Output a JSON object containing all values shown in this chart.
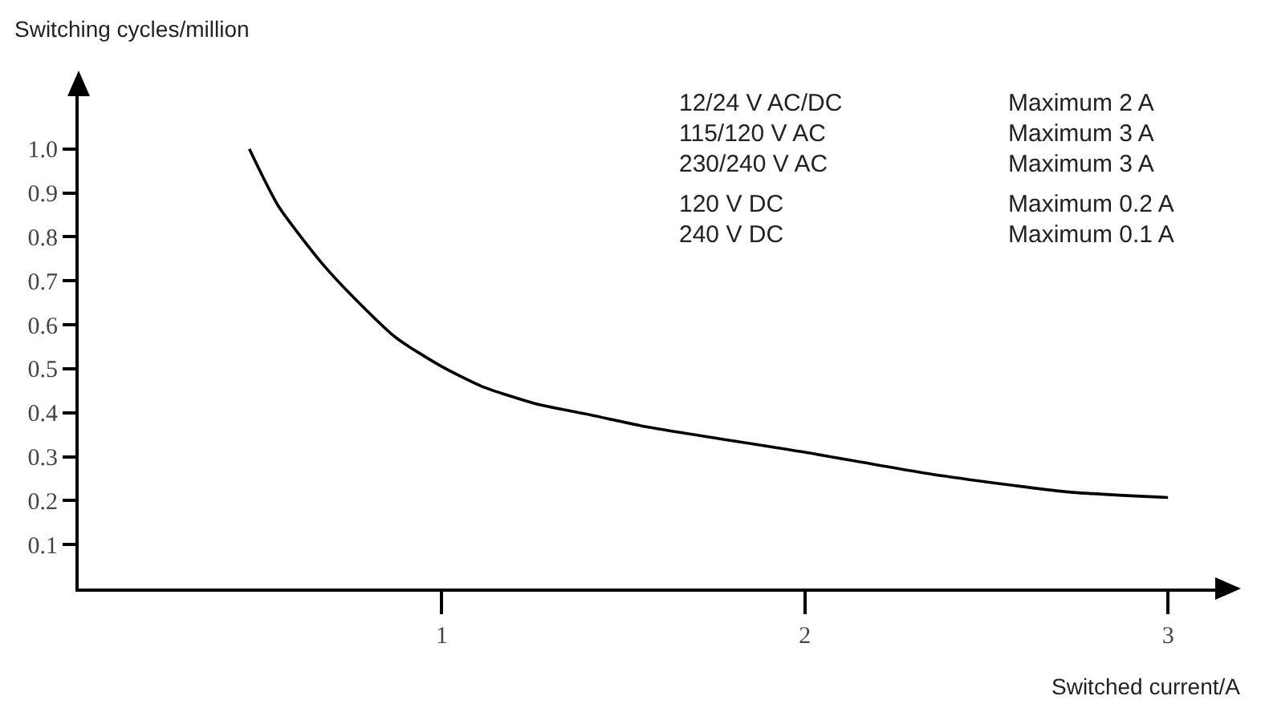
{
  "chart_data": {
    "type": "line",
    "ylabel": "Switching cycles/million",
    "xlabel": "Switched current/A",
    "x": [
      0.47,
      0.55,
      0.67,
      0.76,
      0.875,
      1.0,
      1.11,
      1.26,
      1.41,
      1.55,
      2.0,
      2.35,
      2.72,
      3.0
    ],
    "series": [
      {
        "color": "#000000",
        "values": [
          1.0,
          0.87,
          0.74,
          0.66,
          0.57,
          0.505,
          0.46,
          0.42,
          0.395,
          0.37,
          0.31,
          0.26,
          0.22,
          0.207
        ]
      }
    ],
    "xlim": [
      0,
      3.13
    ],
    "ylim": [
      0,
      1.12
    ],
    "xticks": [
      1,
      2,
      3
    ],
    "yticks": [
      0.1,
      0.2,
      0.3,
      0.4,
      0.5,
      0.6,
      0.7,
      0.8,
      0.9,
      {
        "value": 1.0,
        "label": "1.0"
      }
    ],
    "grid": false,
    "marker": "none",
    "line_style": "solid",
    "annotations": [
      "12/24 V AC/DC",
      "Maximum 2 A",
      "115/120 V AC",
      "Maximum 3 A",
      "230/240 V AC",
      "Maximum 3 A",
      "120 V DC",
      "Maximum 0.2 A",
      "240 V DC",
      "Maximum 0.1 A"
    ]
  }
}
